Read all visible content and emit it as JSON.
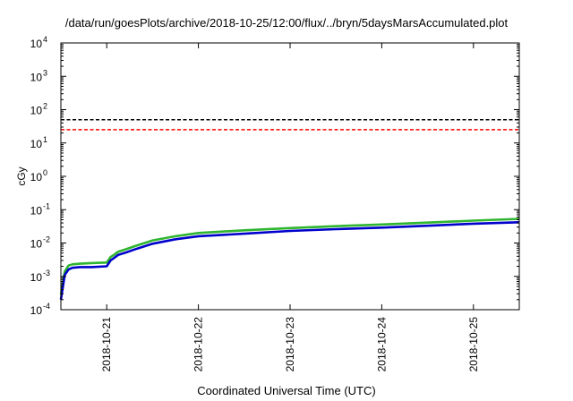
{
  "chart_data": {
    "type": "line",
    "title": "/data/run/goesPlots/archive/2018-10-25/12:00/flux/../bryn/5daysMarsAccumulated.plot",
    "xlabel": "Coordinated Universal Time (UTC)",
    "ylabel": "cGy",
    "y_scale": "log",
    "ylim": [
      0.0001,
      10000
    ],
    "xlim": [
      "2018-10-20T12:00",
      "2018-10-25T12:00"
    ],
    "x_tick_labels": [
      "2018-10-21",
      "2018-10-22",
      "2018-10-23",
      "2018-10-24",
      "2018-10-25"
    ],
    "y_tick_labels": [
      {
        "base": "10",
        "exp": "-4"
      },
      {
        "base": "10",
        "exp": "-3"
      },
      {
        "base": "10",
        "exp": "-2"
      },
      {
        "base": "10",
        "exp": "-1"
      },
      {
        "base": "10",
        "exp": "0"
      },
      {
        "base": "10",
        "exp": "1"
      },
      {
        "base": "10",
        "exp": "2"
      },
      {
        "base": "10",
        "exp": "3"
      },
      {
        "base": "10",
        "exp": "4"
      }
    ],
    "grid": false,
    "legend": "none",
    "series": [
      {
        "color": "#2fb52f",
        "style": "solid",
        "x": [
          "2018-10-20T12:00",
          "2018-10-20T13:00",
          "2018-10-20T14:00",
          "2018-10-20T15:00",
          "2018-10-20T17:00",
          "2018-10-20T20:00",
          "2018-10-21T00:00",
          "2018-10-21T01:00",
          "2018-10-21T02:00",
          "2018-10-21T03:00",
          "2018-10-21T05:00",
          "2018-10-21T08:00",
          "2018-10-21T12:00",
          "2018-10-21T18:00",
          "2018-10-22T00:00",
          "2018-10-22T12:00",
          "2018-10-23T00:00",
          "2018-10-23T12:00",
          "2018-10-24T00:00",
          "2018-10-24T12:00",
          "2018-10-25T00:00",
          "2018-10-25T12:00"
        ],
        "values": [
          0.00028,
          0.0014,
          0.0021,
          0.0023,
          0.0024,
          0.0025,
          0.0026,
          0.0038,
          0.0045,
          0.0055,
          0.0065,
          0.0085,
          0.012,
          0.016,
          0.02,
          0.024,
          0.028,
          0.032,
          0.036,
          0.041,
          0.047,
          0.053
        ]
      },
      {
        "color": "#0000cc",
        "style": "solid",
        "x": [
          "2018-10-20T12:00",
          "2018-10-20T13:00",
          "2018-10-20T14:00",
          "2018-10-20T15:00",
          "2018-10-20T17:00",
          "2018-10-20T20:00",
          "2018-10-21T00:00",
          "2018-10-21T01:00",
          "2018-10-21T02:00",
          "2018-10-21T03:00",
          "2018-10-21T05:00",
          "2018-10-21T08:00",
          "2018-10-21T12:00",
          "2018-10-21T18:00",
          "2018-10-22T00:00",
          "2018-10-22T12:00",
          "2018-10-23T00:00",
          "2018-10-23T12:00",
          "2018-10-24T00:00",
          "2018-10-24T12:00",
          "2018-10-25T00:00",
          "2018-10-25T12:00"
        ],
        "values": [
          0.0002,
          0.0011,
          0.0016,
          0.0018,
          0.0019,
          0.0019,
          0.002,
          0.003,
          0.0036,
          0.0044,
          0.0052,
          0.0068,
          0.0095,
          0.013,
          0.016,
          0.019,
          0.023,
          0.026,
          0.029,
          0.033,
          0.038,
          0.042
        ]
      },
      {
        "color": "#000000",
        "style": "dashed",
        "x": [
          "2018-10-20T12:00",
          "2018-10-25T12:00"
        ],
        "values": [
          50,
          50
        ]
      },
      {
        "color": "#ff0000",
        "style": "dashed",
        "x": [
          "2018-10-20T12:00",
          "2018-10-25T12:00"
        ],
        "values": [
          25,
          25
        ]
      }
    ]
  }
}
